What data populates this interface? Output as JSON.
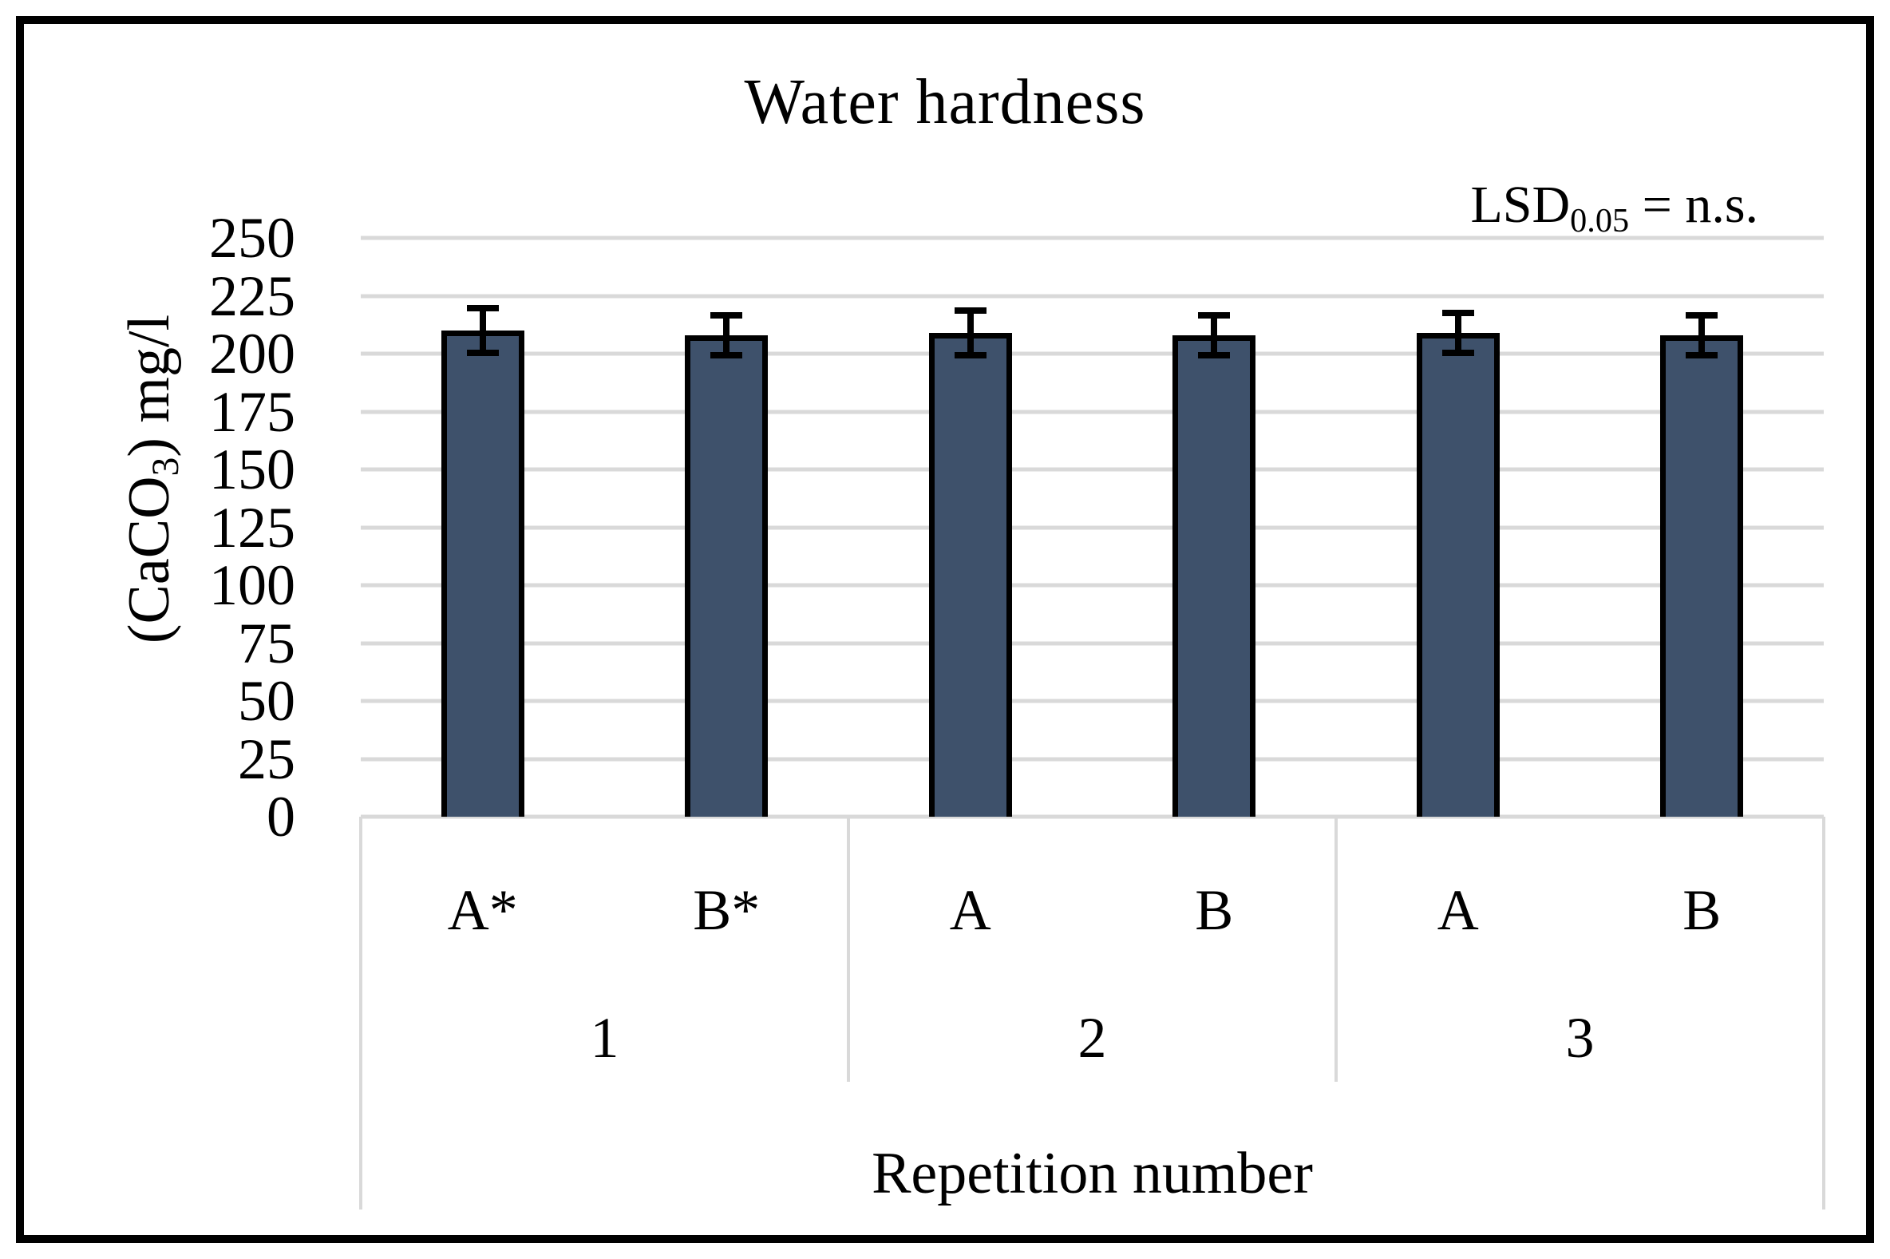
{
  "chart_data": {
    "type": "bar",
    "title": "Water hardness",
    "xlabel": "Repetition number",
    "ylabel": "(CaCO3) mg/l",
    "annotation": "LSD0.05 = n.s.",
    "ylim": [
      0,
      250
    ],
    "ytick_step": 25,
    "yticks": [
      0,
      25,
      50,
      75,
      100,
      125,
      150,
      175,
      200,
      225,
      250
    ],
    "grid": "horizontal gridlines",
    "legend_position": "none",
    "categories": [
      "A*",
      "B*",
      "A",
      "B",
      "A",
      "B"
    ],
    "group_labels": [
      "1",
      "2",
      "3"
    ],
    "groups": [
      {
        "label": "1",
        "bars": [
          {
            "category": "A*",
            "value": 210,
            "error_plus": 11,
            "error_minus": 11
          },
          {
            "category": "B*",
            "value": 208,
            "error_plus": 10,
            "error_minus": 10
          }
        ]
      },
      {
        "label": "2",
        "bars": [
          {
            "category": "A",
            "value": 209,
            "error_plus": 11,
            "error_minus": 11
          },
          {
            "category": "B",
            "value": 208,
            "error_plus": 10,
            "error_minus": 10
          }
        ]
      },
      {
        "label": "3",
        "bars": [
          {
            "category": "A",
            "value": 209,
            "error_plus": 10,
            "error_minus": 10
          },
          {
            "category": "B",
            "value": 208,
            "error_plus": 10,
            "error_minus": 10
          }
        ]
      }
    ]
  },
  "annotation_parts": {
    "prefix": "LSD",
    "sub": "0.05",
    "suffix": " = n.s."
  },
  "ylabel_parts": {
    "pre": "(CaCO",
    "sub": "3",
    "post": ") mg/l"
  },
  "style": {
    "bar_fill": "#3E516B",
    "bar_outline": "#000000",
    "error_bar_color": "#000000",
    "gridline_color": "#D9D9D9",
    "table_border_color": "#D9D9D9",
    "frame_border_color": "#000000",
    "background": "#FFFFFF",
    "text_color": "#000000"
  }
}
